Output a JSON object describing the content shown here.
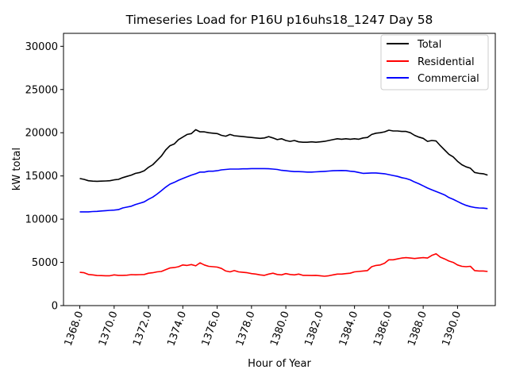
{
  "chart_data": {
    "type": "line",
    "title": "Timeseries Load for P16U p16uhs18_1247  Day 58",
    "xlabel": "Hour of Year",
    "ylabel": "kW total",
    "xlim": [
      1367.05,
      1392.2
    ],
    "ylim": [
      0,
      31500
    ],
    "xticks": [
      1368,
      1370,
      1372,
      1374,
      1376,
      1378,
      1380,
      1382,
      1384,
      1386,
      1388,
      1390
    ],
    "xtick_labels": [
      "1368.0",
      "1370.0",
      "1372.0",
      "1374.0",
      "1376.0",
      "1378.0",
      "1380.0",
      "1382.0",
      "1384.0",
      "1386.0",
      "1388.0",
      "1390.0"
    ],
    "yticks": [
      0,
      5000,
      10000,
      15000,
      20000,
      25000,
      30000
    ],
    "ytick_labels": [
      "0",
      "5000",
      "10000",
      "15000",
      "20000",
      "25000",
      "30000"
    ],
    "grid": false,
    "legend_position": "top-right",
    "series": [
      {
        "name": "Total",
        "color": "#000000",
        "x": [
          1368,
          1368.25,
          1368.5,
          1368.75,
          1369,
          1369.25,
          1369.5,
          1369.75,
          1370,
          1370.25,
          1370.5,
          1370.75,
          1371,
          1371.25,
          1371.5,
          1371.75,
          1372,
          1372.25,
          1372.5,
          1372.75,
          1373,
          1373.25,
          1373.5,
          1373.75,
          1374,
          1374.25,
          1374.5,
          1374.75,
          1375,
          1375.25,
          1375.5,
          1375.75,
          1376,
          1376.25,
          1376.5,
          1376.75,
          1377,
          1377.25,
          1377.5,
          1377.75,
          1378,
          1378.25,
          1378.5,
          1378.75,
          1379,
          1379.25,
          1379.5,
          1379.75,
          1380,
          1380.25,
          1380.5,
          1380.75,
          1381,
          1381.25,
          1381.5,
          1381.75,
          1382,
          1382.25,
          1382.5,
          1382.75,
          1383,
          1383.25,
          1383.5,
          1383.75,
          1384,
          1384.25,
          1384.5,
          1384.75,
          1385,
          1385.25,
          1385.5,
          1385.75,
          1386,
          1386.25,
          1386.5,
          1386.75,
          1387,
          1387.25,
          1387.5,
          1387.75,
          1388,
          1388.25,
          1388.5,
          1388.75,
          1389,
          1389.25,
          1389.5,
          1389.75,
          1390,
          1390.25,
          1390.5,
          1390.75,
          1391,
          1391.25,
          1391.5,
          1391.75
        ],
        "values": [
          14700,
          14600,
          14450,
          14400,
          14380,
          14400,
          14420,
          14450,
          14550,
          14600,
          14800,
          14950,
          15100,
          15300,
          15400,
          15600,
          16000,
          16300,
          16800,
          17300,
          18000,
          18500,
          18700,
          19200,
          19500,
          19800,
          19900,
          20350,
          20100,
          20100,
          20000,
          19950,
          19900,
          19700,
          19600,
          19800,
          19650,
          19600,
          19550,
          19500,
          19450,
          19400,
          19350,
          19400,
          19550,
          19400,
          19200,
          19300,
          19100,
          19000,
          19100,
          18950,
          18900,
          18900,
          18950,
          18900,
          18950,
          19000,
          19100,
          19200,
          19300,
          19250,
          19300,
          19250,
          19300,
          19250,
          19400,
          19450,
          19800,
          19950,
          20000,
          20100,
          20300,
          20200,
          20200,
          20150,
          20150,
          20000,
          19700,
          19500,
          19350,
          19000,
          19100,
          19050,
          18500,
          18000,
          17500,
          17200,
          16700,
          16300,
          16050,
          15900,
          15400,
          15300,
          15250,
          15100
        ]
      },
      {
        "name": "Residential",
        "color": "#ff0000",
        "x": [
          1368,
          1368.25,
          1368.5,
          1368.75,
          1369,
          1369.25,
          1369.5,
          1369.75,
          1370,
          1370.25,
          1370.5,
          1370.75,
          1371,
          1371.25,
          1371.5,
          1371.75,
          1372,
          1372.25,
          1372.5,
          1372.75,
          1373,
          1373.25,
          1373.5,
          1373.75,
          1374,
          1374.25,
          1374.5,
          1374.75,
          1375,
          1375.25,
          1375.5,
          1375.75,
          1376,
          1376.25,
          1376.5,
          1376.75,
          1377,
          1377.25,
          1377.5,
          1377.75,
          1378,
          1378.25,
          1378.5,
          1378.75,
          1379,
          1379.25,
          1379.5,
          1379.75,
          1380,
          1380.25,
          1380.5,
          1380.75,
          1381,
          1381.25,
          1381.5,
          1381.75,
          1382,
          1382.25,
          1382.5,
          1382.75,
          1383,
          1383.25,
          1383.5,
          1383.75,
          1384,
          1384.25,
          1384.5,
          1384.75,
          1385,
          1385.25,
          1385.5,
          1385.75,
          1386,
          1386.25,
          1386.5,
          1386.75,
          1387,
          1387.25,
          1387.5,
          1387.75,
          1388,
          1388.25,
          1388.5,
          1388.75,
          1389,
          1389.25,
          1389.5,
          1389.75,
          1390,
          1390.25,
          1390.5,
          1390.75,
          1391,
          1391.25,
          1391.5,
          1391.75
        ],
        "values": [
          3850,
          3800,
          3600,
          3550,
          3480,
          3470,
          3450,
          3450,
          3550,
          3500,
          3500,
          3520,
          3580,
          3560,
          3580,
          3600,
          3750,
          3800,
          3900,
          3950,
          4150,
          4350,
          4400,
          4500,
          4700,
          4650,
          4750,
          4600,
          4950,
          4700,
          4550,
          4500,
          4450,
          4300,
          4000,
          3900,
          4050,
          3900,
          3850,
          3800,
          3700,
          3650,
          3550,
          3500,
          3650,
          3750,
          3600,
          3550,
          3700,
          3600,
          3550,
          3650,
          3500,
          3500,
          3480,
          3500,
          3450,
          3400,
          3450,
          3550,
          3650,
          3650,
          3700,
          3750,
          3900,
          3950,
          4000,
          4050,
          4500,
          4650,
          4700,
          4900,
          5300,
          5300,
          5400,
          5500,
          5550,
          5500,
          5450,
          5500,
          5550,
          5500,
          5800,
          6000,
          5600,
          5400,
          5150,
          5000,
          4700,
          4550,
          4500,
          4550,
          4050,
          4000,
          4000,
          3950
        ]
      },
      {
        "name": "Commercial",
        "color": "#0000ff",
        "x": [
          1368,
          1368.25,
          1368.5,
          1368.75,
          1369,
          1369.25,
          1369.5,
          1369.75,
          1370,
          1370.25,
          1370.5,
          1370.75,
          1371,
          1371.25,
          1371.5,
          1371.75,
          1372,
          1372.25,
          1372.5,
          1372.75,
          1373,
          1373.25,
          1373.5,
          1373.75,
          1374,
          1374.25,
          1374.5,
          1374.75,
          1375,
          1375.25,
          1375.5,
          1375.75,
          1376,
          1376.25,
          1376.5,
          1376.75,
          1377,
          1377.25,
          1377.5,
          1377.75,
          1378,
          1378.25,
          1378.5,
          1378.75,
          1379,
          1379.25,
          1379.5,
          1379.75,
          1380,
          1380.25,
          1380.5,
          1380.75,
          1381,
          1381.25,
          1381.5,
          1381.75,
          1382,
          1382.25,
          1382.5,
          1382.75,
          1383,
          1383.25,
          1383.5,
          1383.75,
          1384,
          1384.25,
          1384.5,
          1384.75,
          1385,
          1385.25,
          1385.5,
          1385.75,
          1386,
          1386.25,
          1386.5,
          1386.75,
          1387,
          1387.25,
          1387.5,
          1387.75,
          1388,
          1388.25,
          1388.5,
          1388.75,
          1389,
          1389.25,
          1389.5,
          1389.75,
          1390,
          1390.25,
          1390.5,
          1390.75,
          1391,
          1391.25,
          1391.5,
          1391.75
        ],
        "values": [
          10850,
          10850,
          10850,
          10880,
          10900,
          10950,
          10980,
          11020,
          11050,
          11100,
          11300,
          11400,
          11500,
          11700,
          11850,
          12000,
          12300,
          12550,
          12900,
          13300,
          13700,
          14050,
          14250,
          14500,
          14700,
          14900,
          15100,
          15250,
          15450,
          15450,
          15550,
          15550,
          15600,
          15700,
          15750,
          15800,
          15800,
          15800,
          15820,
          15820,
          15850,
          15850,
          15850,
          15850,
          15830,
          15800,
          15750,
          15650,
          15600,
          15550,
          15500,
          15500,
          15480,
          15450,
          15450,
          15470,
          15500,
          15530,
          15570,
          15600,
          15620,
          15630,
          15620,
          15550,
          15500,
          15400,
          15300,
          15320,
          15350,
          15350,
          15300,
          15250,
          15150,
          15050,
          14950,
          14800,
          14700,
          14550,
          14300,
          14100,
          13850,
          13600,
          13400,
          13200,
          13000,
          12800,
          12500,
          12300,
          12050,
          11800,
          11600,
          11450,
          11350,
          11300,
          11280,
          11220
        ]
      }
    ]
  }
}
